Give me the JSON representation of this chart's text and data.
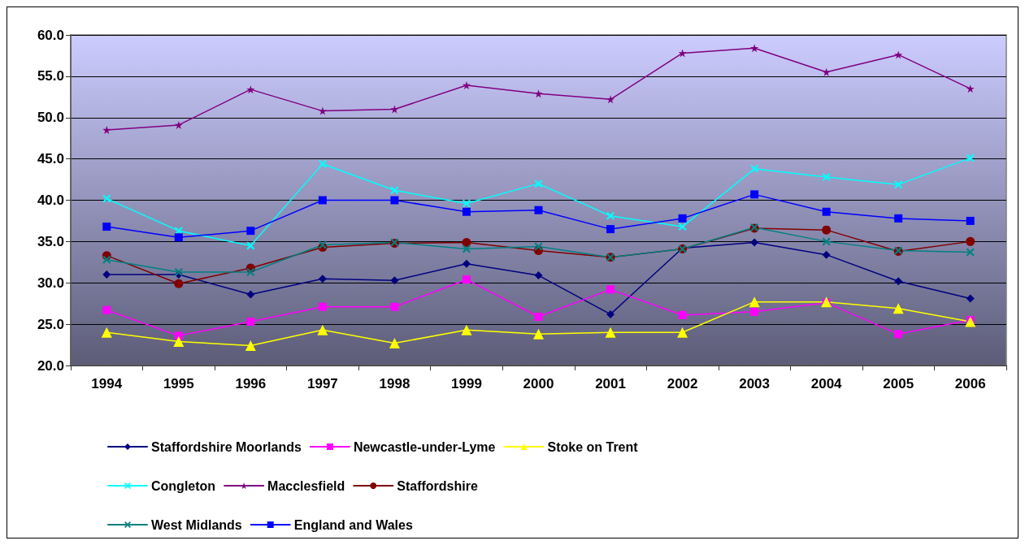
{
  "chart_data": {
    "type": "line",
    "categories": [
      "1994",
      "1995",
      "1996",
      "1997",
      "1998",
      "1999",
      "2000",
      "2001",
      "2002",
      "2003",
      "2004",
      "2005",
      "2006"
    ],
    "series": [
      {
        "name": "Staffordshire Moorlands",
        "color": "#000080",
        "marker": "diamond",
        "values": [
          31.0,
          31.0,
          28.6,
          30.5,
          30.3,
          32.3,
          30.9,
          26.2,
          34.2,
          34.9,
          33.4,
          30.2,
          28.1
        ]
      },
      {
        "name": "Newcastle-under-Lyme",
        "color": "#ff00ff",
        "marker": "square",
        "values": [
          26.7,
          23.6,
          25.3,
          27.1,
          27.1,
          30.4,
          25.9,
          29.2,
          26.1,
          26.5,
          27.6,
          23.8,
          25.5
        ]
      },
      {
        "name": "Stoke on Trent",
        "color": "#ffff00",
        "marker": "triangle",
        "values": [
          24.0,
          22.9,
          22.4,
          24.3,
          22.7,
          24.3,
          23.8,
          24.0,
          24.0,
          27.7,
          27.7,
          26.9,
          25.3
        ]
      },
      {
        "name": "Congleton",
        "color": "#00ffff",
        "marker": "cross",
        "values": [
          40.2,
          36.3,
          34.5,
          44.4,
          41.2,
          39.6,
          42.0,
          38.1,
          36.8,
          43.8,
          42.8,
          41.9,
          45.1
        ]
      },
      {
        "name": "Macclesfield",
        "color": "#800080",
        "marker": "star",
        "values": [
          48.5,
          49.1,
          53.4,
          50.8,
          51.0,
          53.9,
          52.9,
          52.2,
          57.8,
          58.4,
          55.5,
          57.6,
          53.5
        ]
      },
      {
        "name": "Staffordshire",
        "color": "#800000",
        "marker": "circle",
        "values": [
          33.3,
          29.9,
          31.8,
          34.3,
          34.8,
          34.9,
          33.9,
          33.1,
          34.1,
          36.6,
          36.4,
          33.8,
          35.0
        ]
      },
      {
        "name": "West Midlands",
        "color": "#008080",
        "marker": "cross",
        "values": [
          32.8,
          31.3,
          31.3,
          34.6,
          34.9,
          34.1,
          34.4,
          33.1,
          34.1,
          36.7,
          35.0,
          33.9,
          33.7
        ]
      },
      {
        "name": "England and Wales",
        "color": "#0000ff",
        "marker": "square",
        "values": [
          36.8,
          35.5,
          36.3,
          40.0,
          40.0,
          38.6,
          38.8,
          36.5,
          37.8,
          40.7,
          38.6,
          37.8,
          37.5
        ]
      }
    ],
    "ylim": [
      20,
      60
    ],
    "yticks": [
      {
        "value": 20,
        "label": "20.0"
      },
      {
        "value": 25,
        "label": "25.0"
      },
      {
        "value": 30,
        "label": "30.0"
      },
      {
        "value": 35,
        "label": "35.0"
      },
      {
        "value": 40,
        "label": "40.0"
      },
      {
        "value": 45,
        "label": "45.0"
      },
      {
        "value": 50,
        "label": "50.0"
      },
      {
        "value": 55,
        "label": "55.0"
      },
      {
        "value": 60,
        "label": "60.0"
      }
    ],
    "grid": "y",
    "legend": "bottom",
    "line_style": "solid"
  }
}
